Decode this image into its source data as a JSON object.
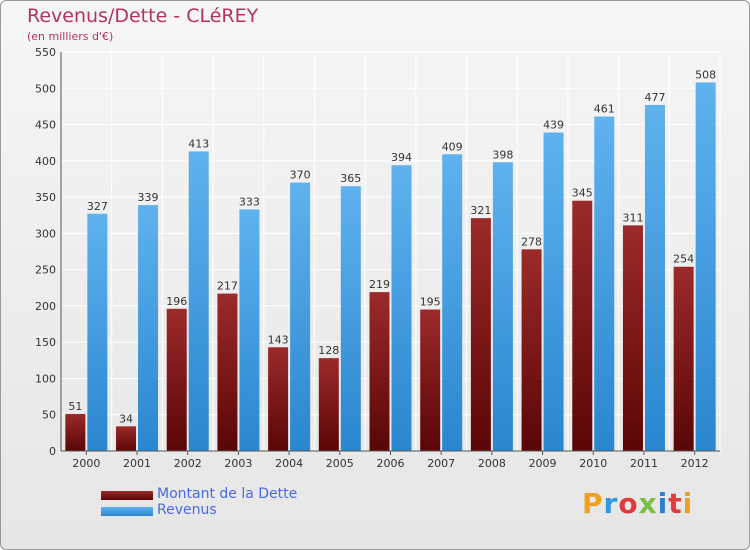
{
  "title": "Revenus/Dette - CLéREY",
  "subtitle": "(en milliers d'€)",
  "colors": {
    "title": "#b5325f",
    "dette": "#8b1a1a",
    "revenus": "#4aa3e8",
    "legend_text": "#4a6ae0"
  },
  "chart_data": {
    "type": "bar",
    "categories": [
      "2000",
      "2001",
      "2002",
      "2003",
      "2004",
      "2005",
      "2006",
      "2007",
      "2008",
      "2009",
      "2010",
      "2011",
      "2012"
    ],
    "series": [
      {
        "name": "Montant de la Dette",
        "values": [
          51,
          34,
          196,
          217,
          143,
          128,
          219,
          195,
          321,
          278,
          345,
          311,
          254
        ]
      },
      {
        "name": "Revenus",
        "values": [
          327,
          339,
          413,
          333,
          370,
          365,
          394,
          409,
          398,
          439,
          461,
          477,
          508
        ]
      }
    ],
    "yticks": [
      0,
      50,
      100,
      150,
      200,
      250,
      300,
      350,
      400,
      450,
      500,
      550
    ],
    "ylim": [
      0,
      550
    ],
    "grid": true,
    "legend": "bottom-left"
  },
  "legend": {
    "items": [
      {
        "label": "Montant de la Dette"
      },
      {
        "label": "Revenus"
      }
    ]
  },
  "logo": {
    "text": "Proxiti",
    "letter_colors": [
      "#f0a020",
      "#3399dd",
      "#e03a3a",
      "#7ac043",
      "#2f7fd0",
      "#e03a3a",
      "#f0a020"
    ]
  }
}
